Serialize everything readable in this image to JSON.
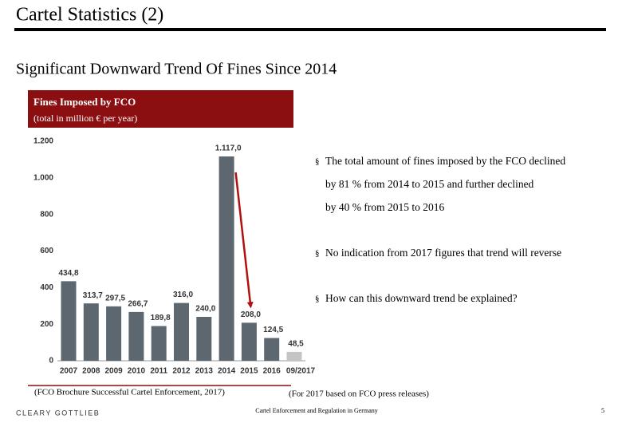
{
  "header": {
    "title": "Cartel Statistics (2)",
    "subtitle": "Significant Downward Trend Of Fines Since 2014"
  },
  "chart_data": {
    "type": "bar",
    "title": "Fines Imposed by FCO",
    "subtitle": "(total in million € per year)",
    "categories": [
      "2007",
      "2008",
      "2009",
      "2010",
      "2011",
      "2012",
      "2013",
      "2014",
      "2015",
      "2016",
      "09/2017"
    ],
    "values": [
      434.8,
      313.7,
      297.5,
      266.7,
      189.8,
      316.0,
      240.0,
      1117.0,
      208.0,
      124.5,
      48.5
    ],
    "value_labels": [
      "434,8",
      "313,7",
      "297,5",
      "266,7",
      "189,8",
      "316,0",
      "240,0",
      "1.117,0",
      "208,0",
      "124,5",
      "48,5"
    ],
    "colors": [
      "#5d6770",
      "#5d6770",
      "#5d6770",
      "#5d6770",
      "#5d6770",
      "#5d6770",
      "#5d6770",
      "#5d6770",
      "#5d6770",
      "#5d6770",
      "#c4c4c4"
    ],
    "ylim": [
      0,
      1200
    ],
    "yticks": [
      0,
      200,
      400,
      600,
      800,
      {
        "value": 1000,
        "label": "1.000"
      },
      {
        "value": 1200,
        "label": "1.200"
      }
    ],
    "grid": false
  },
  "bullets": [
    [
      "The total amount of fines imposed by the FCO declined",
      "by 81 % from 2014 to 2015 and further declined",
      "by 40 % from 2015 to 2016"
    ],
    [
      "No indication from 2017 figures that trend will reverse"
    ],
    [
      "How can this downward trend be explained?"
    ]
  ],
  "sources": {
    "left": "(FCO Brochure Successful Cartel Enforcement, 2017)",
    "right": "(For 2017 based on FCO press releases)"
  },
  "footer": {
    "brand": "CLEARY GOTTLIEB",
    "center": "Cartel Enforcement and Regulation in Germany",
    "page": "5"
  }
}
